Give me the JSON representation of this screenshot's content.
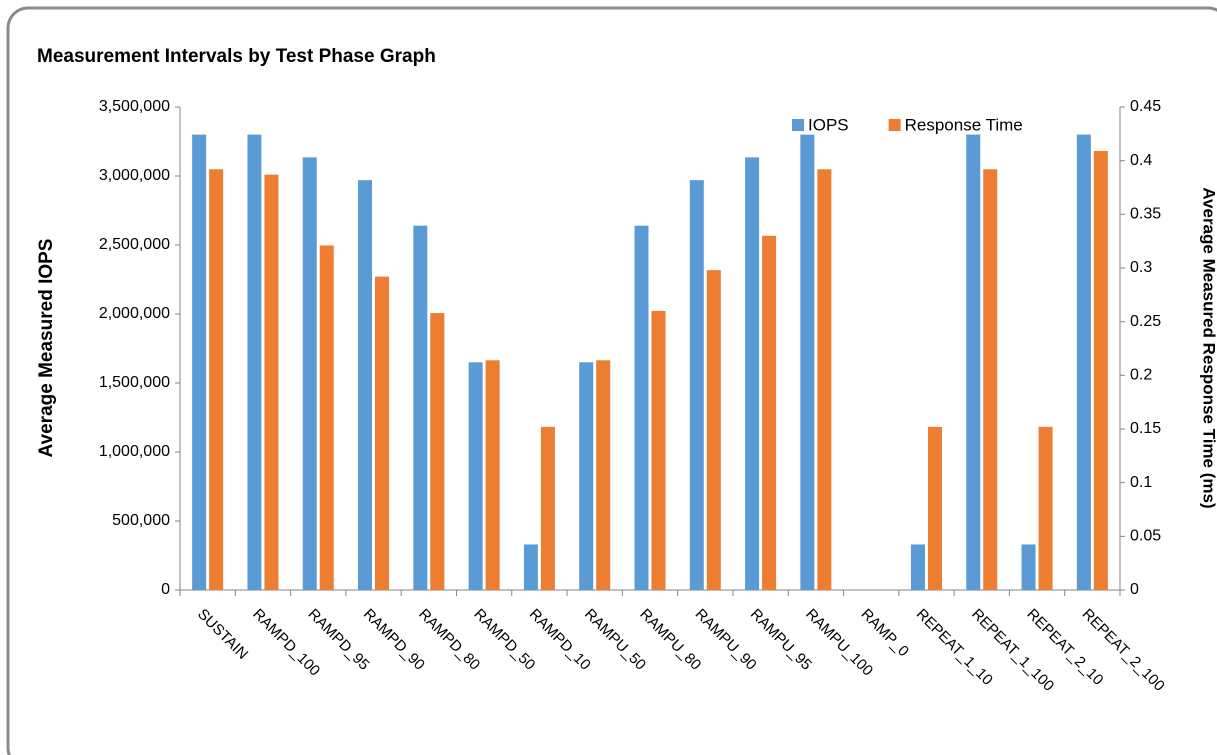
{
  "chart_data": {
    "type": "bar",
    "title": "Measurement Intervals by Test Phase Graph",
    "y_label": "Average Measured IOPS",
    "y2_label": "Average Measured Response Time (ms)",
    "categories": [
      "SUSTAIN",
      "RAMPD_100",
      "RAMPD_95",
      "RAMPD_90",
      "RAMPD_80",
      "RAMPD_50",
      "RAMPD_10",
      "RAMPU_50",
      "RAMPU_80",
      "RAMPU_90",
      "RAMPU_95",
      "RAMPU_100",
      "RAMP_0",
      "REPEAT_1_10",
      "REPEAT_1_100",
      "REPEAT_2_10",
      "REPEAT_2_100"
    ],
    "series": [
      {
        "name": "IOPS",
        "color": "#5b9bd5",
        "values": [
          3300000,
          3300000,
          3135000,
          2970000,
          2640000,
          1650000,
          330000,
          1650000,
          2640000,
          2970000,
          3135000,
          3300000,
          0,
          330000,
          3300000,
          330000,
          3300000
        ]
      },
      {
        "name": "Response Time",
        "color": "#ed7d31",
        "axis": "y2",
        "values": [
          0.392,
          0.387,
          0.321,
          0.292,
          0.258,
          0.214,
          0.152,
          0.214,
          0.26,
          0.298,
          0.33,
          0.392,
          0,
          0.152,
          0.392,
          0.152,
          0.409
        ]
      }
    ],
    "ylim": [
      0,
      3500000
    ],
    "yticks": [
      0,
      {
        "value": 500000,
        "label": "500,000"
      },
      {
        "value": 1000000,
        "label": "1,000,000"
      },
      {
        "value": 1500000,
        "label": "1,500,000"
      },
      {
        "value": 2000000,
        "label": "2,000,000"
      },
      {
        "value": 2500000,
        "label": "2,500,000"
      },
      {
        "value": 3000000,
        "label": "3,000,000"
      },
      {
        "value": 3500000,
        "label": "3,500,000"
      }
    ],
    "y2lim": [
      0,
      0.45
    ],
    "y2ticks": [
      0,
      0.05,
      0.1,
      0.15,
      0.2,
      0.25,
      0.3,
      0.35,
      0.4,
      0.45
    ],
    "grid": false,
    "legend": "top-right"
  }
}
